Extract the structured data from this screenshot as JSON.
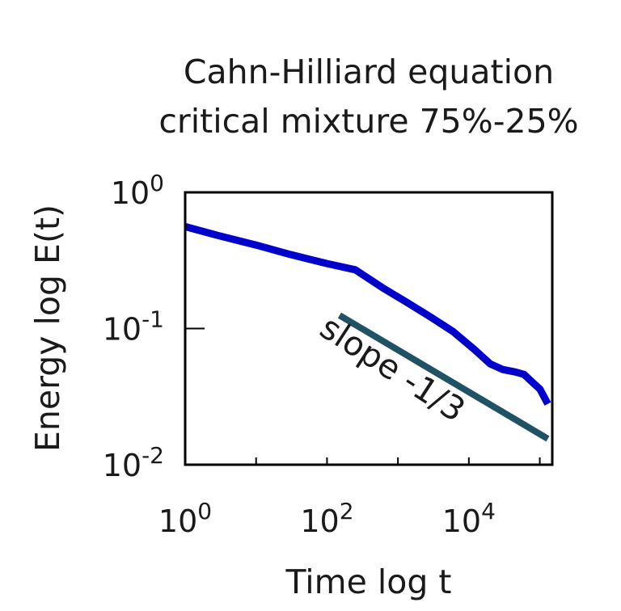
{
  "chart_data": {
    "type": "line",
    "title_lines": [
      "Cahn-Hilliard equation",
      "critical mixture 75%-25%"
    ],
    "xlabel": "Time log t",
    "ylabel": "Energy log E(t)",
    "x_scale": "log",
    "y_scale": "log",
    "xlim": [
      1,
      150000
    ],
    "ylim": [
      0.01,
      1
    ],
    "x_ticks": [
      {
        "base": "10",
        "exp": "0"
      },
      {
        "base": "10",
        "exp": "2"
      },
      {
        "base": "10",
        "exp": "4"
      }
    ],
    "y_ticks": [
      {
        "base": "10",
        "exp": "0"
      },
      {
        "base": "10",
        "exp": "-1"
      },
      {
        "base": "10",
        "exp": "-2"
      }
    ],
    "grid": false,
    "colors": {
      "energy": "#0000cc",
      "slope": "#1e5264"
    },
    "series": [
      {
        "x": [
          1,
          3,
          10,
          30,
          100,
          250,
          600,
          1500,
          3000,
          6000,
          12000,
          20000,
          30000,
          45000,
          60000,
          80000,
          100000,
          130000
        ],
        "values": [
          0.56,
          0.48,
          0.41,
          0.35,
          0.3,
          0.27,
          0.2,
          0.15,
          0.12,
          0.095,
          0.07,
          0.055,
          0.05,
          0.048,
          0.046,
          0.04,
          0.036,
          0.028
        ]
      },
      {
        "x": [
          150,
          130000
        ],
        "values": [
          0.125,
          0.0155
        ]
      }
    ],
    "annotations": [
      {
        "text": "slope -1/3"
      }
    ]
  }
}
